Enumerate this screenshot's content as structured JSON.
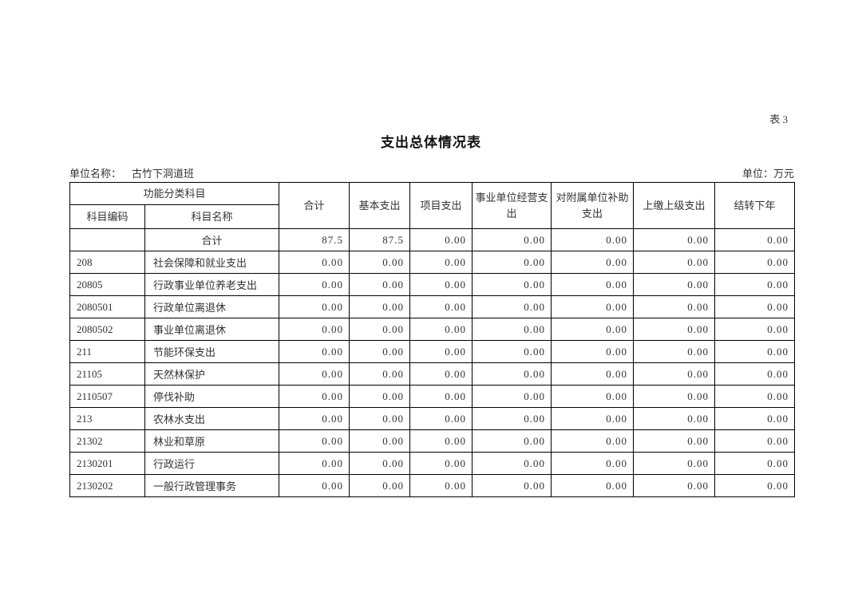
{
  "page": {
    "table_label": "表 3",
    "title": "支出总体情况表",
    "unit_name_label": "单位名称：",
    "unit_name": "古竹下洞道班",
    "unit_label": "单位：万元"
  },
  "table": {
    "header": {
      "group": "功能分类科目",
      "code": "科目编码",
      "name": "科目名称",
      "cols": [
        "合计",
        "基本支出",
        "项目支出",
        "事业单位经营支出",
        "对附属单位补助支出",
        "上缴上级支出",
        "结转下年"
      ]
    },
    "rows": [
      {
        "code": "",
        "name": "合计",
        "center": true,
        "values": [
          "87.5",
          "87.5",
          "0.00",
          "0.00",
          "0.00",
          "0.00",
          "0.00"
        ]
      },
      {
        "code": "208",
        "name": "社会保障和就业支出",
        "center": false,
        "values": [
          "0.00",
          "0.00",
          "0.00",
          "0.00",
          "0.00",
          "0.00",
          "0.00"
        ]
      },
      {
        "code": "20805",
        "name": "行政事业单位养老支出",
        "center": false,
        "values": [
          "0.00",
          "0.00",
          "0.00",
          "0.00",
          "0.00",
          "0.00",
          "0.00"
        ]
      },
      {
        "code": "2080501",
        "name": "行政单位离退休",
        "center": false,
        "values": [
          "0.00",
          "0.00",
          "0.00",
          "0.00",
          "0.00",
          "0.00",
          "0.00"
        ]
      },
      {
        "code": "2080502",
        "name": "事业单位离退休",
        "center": false,
        "values": [
          "0.00",
          "0.00",
          "0.00",
          "0.00",
          "0.00",
          "0.00",
          "0.00"
        ]
      },
      {
        "code": "211",
        "name": "节能环保支出",
        "center": false,
        "values": [
          "0.00",
          "0.00",
          "0.00",
          "0.00",
          "0.00",
          "0.00",
          "0.00"
        ]
      },
      {
        "code": "21105",
        "name": "天然林保护",
        "center": false,
        "values": [
          "0.00",
          "0.00",
          "0.00",
          "0.00",
          "0.00",
          "0.00",
          "0.00"
        ]
      },
      {
        "code": "2110507",
        "name": "停伐补助",
        "center": false,
        "values": [
          "0.00",
          "0.00",
          "0.00",
          "0.00",
          "0.00",
          "0.00",
          "0.00"
        ]
      },
      {
        "code": "213",
        "name": "农林水支出",
        "center": false,
        "values": [
          "0.00",
          "0.00",
          "0.00",
          "0.00",
          "0.00",
          "0.00",
          "0.00"
        ]
      },
      {
        "code": "21302",
        "name": "林业和草原",
        "center": false,
        "values": [
          "0.00",
          "0.00",
          "0.00",
          "0.00",
          "0.00",
          "0.00",
          "0.00"
        ]
      },
      {
        "code": "2130201",
        "name": "行政运行",
        "center": false,
        "values": [
          "0.00",
          "0.00",
          "0.00",
          "0.00",
          "0.00",
          "0.00",
          "0.00"
        ]
      },
      {
        "code": "2130202",
        "name": "一般行政管理事务",
        "center": false,
        "values": [
          "0.00",
          "0.00",
          "0.00",
          "0.00",
          "0.00",
          "0.00",
          "0.00"
        ]
      }
    ]
  },
  "colors": {
    "border": "#000000",
    "text": "#333333",
    "background": "#ffffff"
  }
}
